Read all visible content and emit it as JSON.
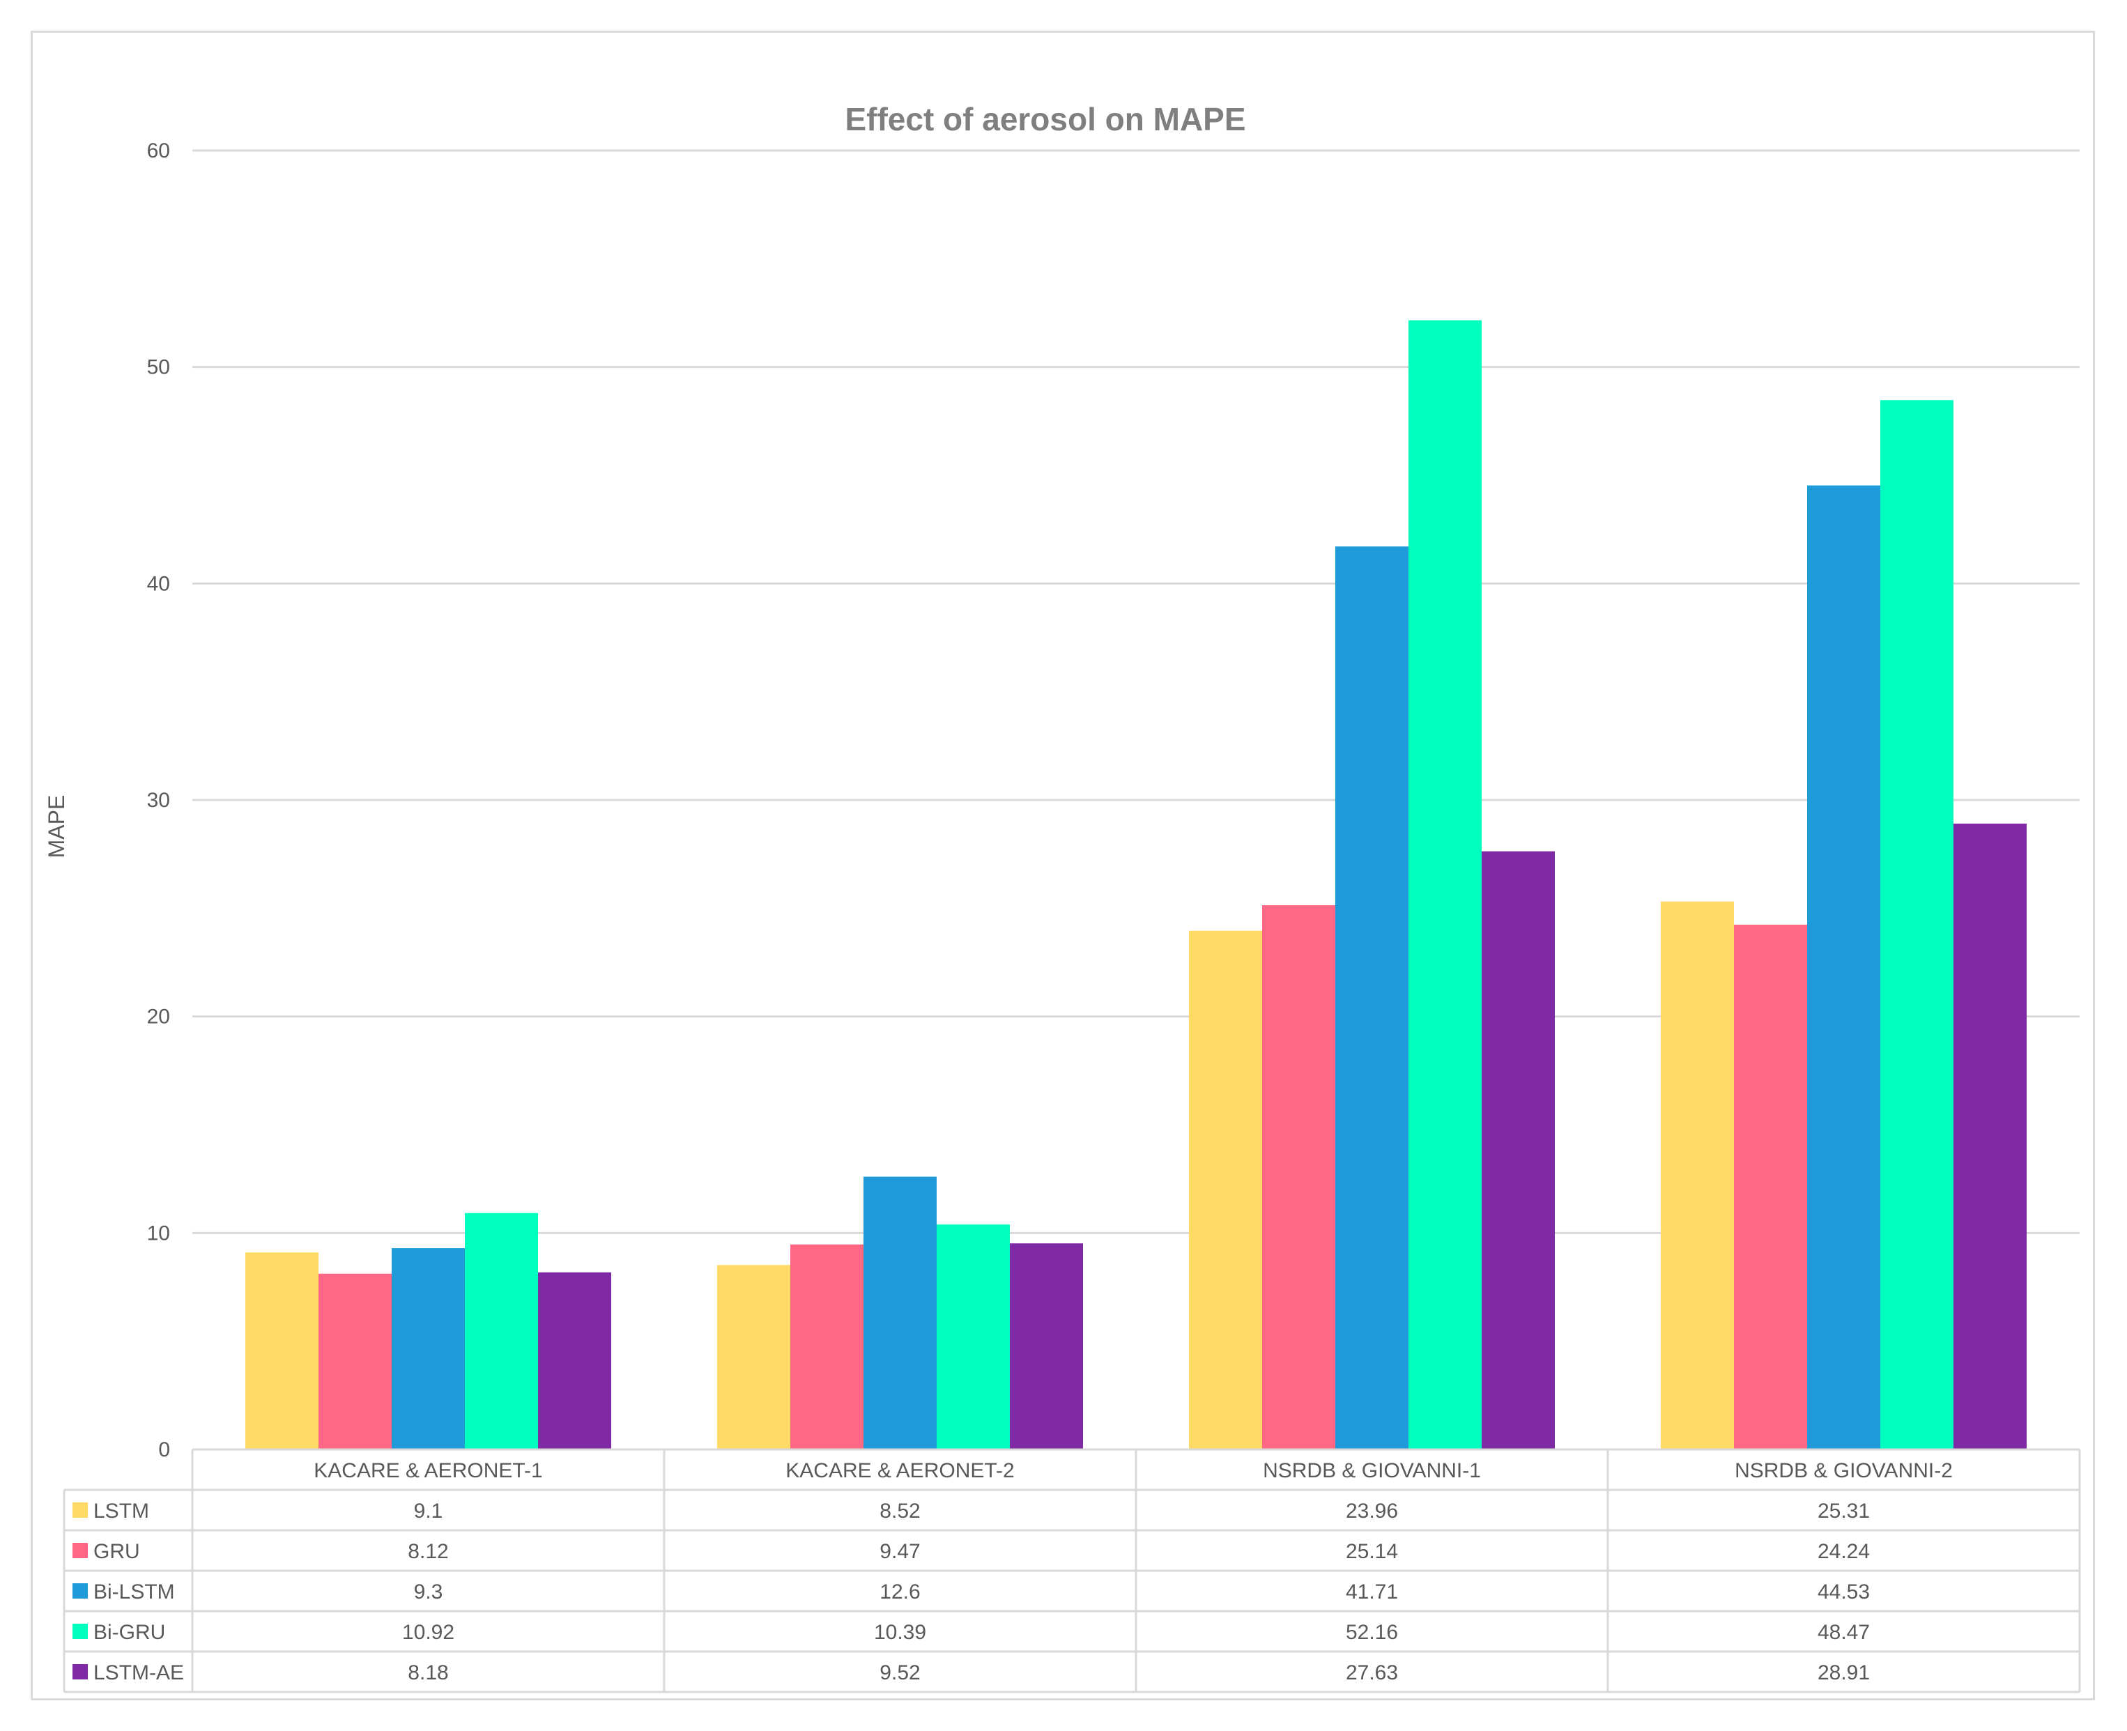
{
  "chart_data": {
    "type": "bar",
    "title": "Effect of aerosol on MAPE",
    "xlabel": "",
    "ylabel": "MAPE",
    "ylim": [
      0,
      60
    ],
    "yticks": [
      0,
      10,
      20,
      30,
      40,
      50,
      60
    ],
    "grid": true,
    "legend": "data-table",
    "categories": [
      "KACARE & AERONET-1",
      "KACARE & AERONET-2",
      "NSRDB & GIOVANNI-1",
      "NSRDB & GIOVANNI-2"
    ],
    "series": [
      {
        "name": "LSTM",
        "color": "#FFD966",
        "values": [
          9.1,
          8.52,
          23.96,
          25.31
        ]
      },
      {
        "name": "GRU",
        "color": "#FF6785",
        "values": [
          8.12,
          9.47,
          25.14,
          24.24
        ]
      },
      {
        "name": "Bi-LSTM",
        "color": "#1F9BD9",
        "values": [
          9.3,
          12.6,
          41.71,
          44.53
        ]
      },
      {
        "name": "Bi-GRU",
        "color": "#00FFBF",
        "values": [
          10.92,
          10.39,
          52.16,
          48.47
        ]
      },
      {
        "name": "LSTM-AE",
        "color": "#7F2AA4",
        "values": [
          8.18,
          9.52,
          27.63,
          28.91
        ]
      }
    ],
    "table_values": [
      [
        "9.1",
        "8.52",
        "23.96",
        "25.31"
      ],
      [
        "8.12",
        "9.47",
        "25.14",
        "24.24"
      ],
      [
        "9.3",
        "12.6",
        "41.71",
        "44.53"
      ],
      [
        "10.92",
        "10.39",
        "52.16",
        "48.47"
      ],
      [
        "8.18",
        "9.52",
        "27.63",
        "28.91"
      ]
    ]
  }
}
